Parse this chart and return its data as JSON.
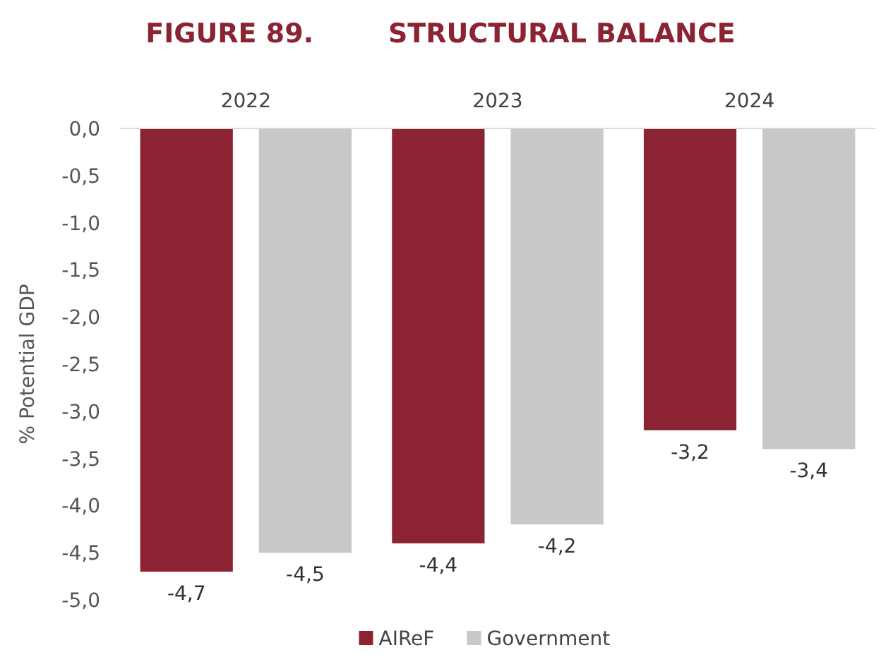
{
  "chart_data": {
    "type": "bar",
    "title": "FIGURE 89.        STRUCTURAL BALANCE",
    "ylabel": "% Potential GDP",
    "categories": [
      "2022",
      "2023",
      "2024"
    ],
    "series": [
      {
        "name": "AIReF",
        "color": "#8b2332",
        "values": [
          -4.7,
          -4.4,
          -3.2
        ],
        "value_labels": [
          "-4,7",
          "-4,4",
          "-3,2"
        ]
      },
      {
        "name": "Government",
        "color": "#c8c8c8",
        "values": [
          -4.5,
          -4.2,
          -3.4
        ],
        "value_labels": [
          "-4,5",
          "-4,2",
          "-3,4"
        ]
      }
    ],
    "ylim": [
      -5,
      0
    ],
    "yticks": [
      {
        "value": 0,
        "label": "0,0"
      },
      {
        "value": -0.5,
        "label": "-0,5"
      },
      {
        "value": -1,
        "label": "-1,0"
      },
      {
        "value": -1.5,
        "label": "-1,5"
      },
      {
        "value": -2,
        "label": "-2,0"
      },
      {
        "value": -2.5,
        "label": "-2,5"
      },
      {
        "value": -3,
        "label": "-3,0"
      },
      {
        "value": -3.5,
        "label": "-3,5"
      },
      {
        "value": -4,
        "label": "-4,0"
      },
      {
        "value": -4.5,
        "label": "-4,5"
      },
      {
        "value": -5,
        "label": "-5,0"
      }
    ],
    "grid": false,
    "legend": "bottom"
  }
}
